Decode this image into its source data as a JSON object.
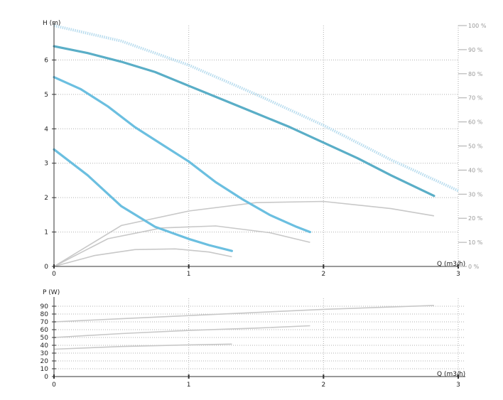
{
  "chart_data": [
    {
      "type": "line",
      "ylabel": "H (m)",
      "xlabel": "Q (m3/h)",
      "xlim": [
        0,
        3
      ],
      "ylim": [
        0,
        7
      ],
      "x_ticks": [
        "0",
        "1",
        "2",
        "3"
      ],
      "y_ticks": [
        "0",
        "1",
        "2",
        "3",
        "4",
        "5",
        "6"
      ],
      "y2_ticks": [
        "0 %",
        "10 %",
        "20 %",
        "30 %",
        "40 %",
        "50 %",
        "60 %",
        "70 %",
        "80 %",
        "90 %",
        "100 %"
      ],
      "y2lim": [
        0,
        100
      ],
      "grid": true,
      "head_curves": [
        {
          "color": "#5aaec7",
          "x": [
            0,
            0.25,
            0.5,
            0.75,
            1.0,
            1.25,
            1.5,
            1.75,
            2.0,
            2.25,
            2.5,
            2.82
          ],
          "y": [
            6.4,
            6.2,
            5.95,
            5.65,
            5.25,
            4.85,
            4.45,
            4.05,
            3.6,
            3.15,
            2.65,
            2.05
          ]
        },
        {
          "color": "#6bbfe0",
          "x": [
            0,
            0.2,
            0.4,
            0.6,
            0.8,
            1.0,
            1.2,
            1.4,
            1.6,
            1.8,
            1.9
          ],
          "y": [
            5.5,
            5.15,
            4.65,
            4.05,
            3.55,
            3.05,
            2.45,
            1.95,
            1.5,
            1.15,
            1.0
          ]
        },
        {
          "color": "#6bbfe0",
          "x": [
            0,
            0.25,
            0.5,
            0.75,
            1.0,
            1.15,
            1.32
          ],
          "y": [
            3.4,
            2.65,
            1.75,
            1.15,
            0.8,
            0.62,
            0.45
          ]
        }
      ],
      "max_curve": {
        "color": "#b8dcee",
        "x": [
          0,
          0.5,
          1.0,
          1.5,
          2.0,
          2.5,
          3.0
        ],
        "y": [
          7.0,
          6.55,
          5.85,
          5.0,
          4.1,
          3.1,
          2.2
        ]
      },
      "efficiency_curves": [
        {
          "color": "#c8c8c8",
          "x": [
            0,
            0.5,
            1.0,
            1.5,
            2.0,
            2.5,
            2.82
          ],
          "y": [
            0,
            17,
            23,
            26.5,
            27,
            24,
            21
          ]
        },
        {
          "color": "#c8c8c8",
          "x": [
            0,
            0.4,
            0.8,
            1.2,
            1.6,
            1.9
          ],
          "y": [
            0,
            11.5,
            16,
            16.8,
            14,
            10
          ]
        },
        {
          "color": "#c8c8c8",
          "x": [
            0,
            0.3,
            0.6,
            0.9,
            1.15,
            1.32
          ],
          "y": [
            0,
            4.5,
            7,
            7.3,
            6,
            4
          ]
        }
      ]
    },
    {
      "type": "line",
      "ylabel": "P (W)",
      "xlabel": "Q (m3/h)",
      "xlim": [
        0,
        3
      ],
      "ylim": [
        0,
        100
      ],
      "x_ticks": [
        "0",
        "1",
        "2",
        "3"
      ],
      "y_ticks": [
        "0",
        "10",
        "20",
        "30",
        "40",
        "50",
        "60",
        "70",
        "80",
        "90"
      ],
      "grid": true,
      "series": [
        {
          "color": "#c8c8c8",
          "x": [
            0,
            0.5,
            1.0,
            1.5,
            2.0,
            2.5,
            2.82
          ],
          "y": [
            70,
            74,
            78,
            82,
            86,
            89,
            91
          ]
        },
        {
          "color": "#c8c8c8",
          "x": [
            0,
            0.5,
            1.0,
            1.5,
            1.9
          ],
          "y": [
            50,
            55,
            59,
            62,
            65
          ]
        },
        {
          "color": "#c8c8c8",
          "x": [
            0,
            0.5,
            1.0,
            1.32
          ],
          "y": [
            35,
            38.5,
            40.5,
            41.5
          ]
        }
      ]
    }
  ]
}
